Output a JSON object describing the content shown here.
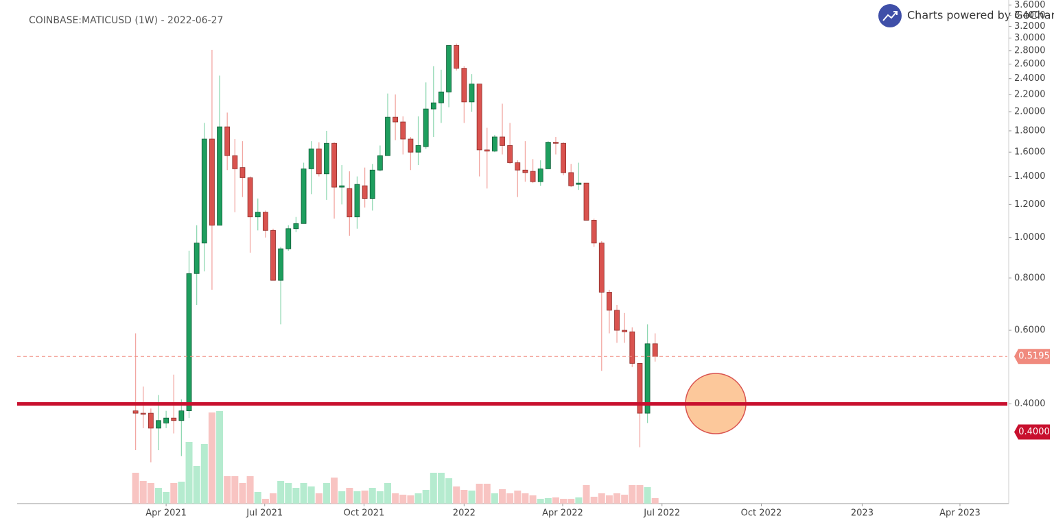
{
  "chart_data": {
    "type": "candlestick",
    "title": "COINBASE:MATICUSD (1W) - 2022-06-27",
    "branding": "Charts powered by GoCharting",
    "y_scale": "log",
    "ylim": [
      0.231,
      3.7
    ],
    "yticks": [
      {
        "value": 0.4,
        "label": "0.4000"
      },
      {
        "value": 0.6,
        "label": "0.6000"
      },
      {
        "value": 0.8,
        "label": "0.8000"
      },
      {
        "value": 1.0,
        "label": "1.0000"
      },
      {
        "value": 1.2,
        "label": "1.2000"
      },
      {
        "value": 1.4,
        "label": "1.4000"
      },
      {
        "value": 1.6,
        "label": "1.6000"
      },
      {
        "value": 1.8,
        "label": "1.8000"
      },
      {
        "value": 2.0,
        "label": "2.0000"
      },
      {
        "value": 2.2,
        "label": "2.2000"
      },
      {
        "value": 2.4,
        "label": "2.4000"
      },
      {
        "value": 2.6,
        "label": "2.6000"
      },
      {
        "value": 2.8,
        "label": "2.8000"
      },
      {
        "value": 3.0,
        "label": "3.0000"
      },
      {
        "value": 3.2,
        "label": "3.2000"
      },
      {
        "value": 3.4,
        "label": "3.4000"
      },
      {
        "value": 3.6,
        "label": "3.6000"
      }
    ],
    "xlim": [
      -15.5,
      114.1
    ],
    "xticks": [
      {
        "value": 4.0,
        "label": "Apr 2021"
      },
      {
        "value": 16.9,
        "label": "Jul 2021"
      },
      {
        "value": 29.9,
        "label": "Oct 2021"
      },
      {
        "value": 43.0,
        "label": "2022"
      },
      {
        "value": 55.9,
        "label": "Apr 2022"
      },
      {
        "value": 68.9,
        "label": "Jul 2022"
      },
      {
        "value": 81.9,
        "label": "Oct 2022"
      },
      {
        "value": 95.1,
        "label": "2023"
      },
      {
        "value": 107.9,
        "label": "Apr 2023"
      }
    ],
    "up_color": "#1e9e5e",
    "down_color": "#d9534f",
    "open": [
      0.385,
      0.38,
      0.38,
      0.35,
      0.36,
      0.37,
      0.365,
      0.385,
      0.82,
      0.97,
      1.72,
      1.07,
      1.84,
      1.57,
      1.47,
      1.39,
      1.12,
      1.15,
      1.04,
      0.79,
      0.94,
      1.05,
      1.08,
      1.46,
      1.63,
      1.42,
      1.68,
      1.32,
      1.31,
      1.12,
      1.33,
      1.24,
      1.45,
      1.57,
      1.94,
      1.89,
      1.72,
      1.6,
      1.65,
      2.03,
      2.1,
      2.23,
      2.88,
      2.54,
      2.11,
      2.33,
      1.62,
      1.61,
      1.74,
      1.66,
      1.51,
      1.45,
      1.44,
      1.36,
      1.46,
      1.69,
      1.68,
      1.43,
      1.34,
      1.35,
      1.1,
      0.97,
      0.74,
      0.67,
      0.6,
      0.595,
      0.5,
      0.38,
      0.557
    ],
    "high": [
      0.59,
      0.44,
      0.39,
      0.42,
      0.385,
      0.47,
      0.41,
      0.93,
      1.07,
      1.88,
      2.81,
      2.44,
      1.99,
      1.72,
      1.7,
      1.4,
      1.24,
      1.16,
      1.05,
      0.95,
      1.07,
      1.12,
      1.51,
      1.7,
      1.69,
      1.8,
      1.69,
      1.49,
      1.44,
      1.4,
      1.47,
      1.5,
      1.66,
      2.21,
      2.2,
      1.95,
      1.74,
      1.95,
      2.35,
      2.57,
      2.52,
      2.88,
      2.91,
      2.57,
      2.46,
      2.33,
      1.83,
      1.76,
      2.09,
      1.88,
      1.53,
      1.7,
      1.54,
      1.53,
      1.7,
      1.74,
      1.69,
      1.5,
      1.51,
      1.35,
      1.11,
      0.98,
      0.75,
      0.69,
      0.66,
      0.61,
      0.5,
      0.62,
      0.59
    ],
    "low": [
      0.31,
      0.35,
      0.29,
      0.31,
      0.35,
      0.34,
      0.3,
      0.37,
      0.69,
      0.83,
      0.75,
      1.07,
      1.45,
      1.15,
      1.25,
      0.92,
      1.04,
      1.0,
      0.79,
      0.62,
      0.93,
      1.03,
      1.08,
      1.27,
      1.4,
      1.23,
      1.11,
      1.2,
      1.01,
      1.05,
      1.18,
      1.16,
      1.44,
      1.57,
      1.71,
      1.58,
      1.45,
      1.49,
      1.63,
      1.74,
      1.88,
      2.05,
      2.51,
      1.88,
      2.0,
      1.4,
      1.31,
      1.6,
      1.58,
      1.5,
      1.25,
      1.36,
      1.35,
      1.33,
      1.46,
      1.58,
      1.41,
      1.32,
      1.3,
      1.1,
      0.95,
      0.48,
      0.59,
      0.56,
      0.56,
      0.49,
      0.315,
      0.36,
      0.505
    ],
    "close": [
      0.38,
      0.378,
      0.35,
      0.365,
      0.37,
      0.365,
      0.385,
      0.82,
      0.97,
      1.72,
      1.07,
      1.84,
      1.57,
      1.46,
      1.39,
      1.12,
      1.15,
      1.04,
      0.79,
      0.94,
      1.05,
      1.08,
      1.46,
      1.63,
      1.42,
      1.68,
      1.32,
      1.33,
      1.12,
      1.34,
      1.24,
      1.45,
      1.57,
      1.94,
      1.89,
      1.72,
      1.6,
      1.66,
      2.03,
      2.1,
      2.23,
      2.88,
      2.54,
      2.11,
      2.33,
      1.62,
      1.61,
      1.74,
      1.66,
      1.51,
      1.45,
      1.43,
      1.36,
      1.46,
      1.69,
      1.68,
      1.43,
      1.33,
      1.35,
      1.1,
      0.97,
      0.74,
      0.67,
      0.6,
      0.595,
      0.5,
      0.38,
      0.557,
      0.5195
    ],
    "volume": [
      45,
      33,
      30,
      23,
      17,
      30,
      32,
      90,
      55,
      87,
      133,
      135,
      40,
      40,
      30,
      40,
      17,
      7,
      15,
      33,
      30,
      23,
      30,
      25,
      15,
      30,
      38,
      18,
      23,
      18,
      19,
      23,
      18,
      30,
      15,
      13,
      12,
      15,
      20,
      45,
      45,
      37,
      25,
      20,
      19,
      29,
      29,
      15,
      21,
      15,
      19,
      15,
      12,
      7,
      8,
      9,
      7,
      7,
      9,
      27,
      10,
      15,
      12,
      15,
      13,
      27,
      27,
      24,
      8
    ],
    "price_lines": [
      {
        "value": 0.5195,
        "label": "0.5195",
        "color": "#f08a7e",
        "style": "dashed"
      },
      {
        "value": 0.4,
        "label": "0.4000",
        "color": "#c8102e",
        "style": "solid"
      }
    ]
  }
}
